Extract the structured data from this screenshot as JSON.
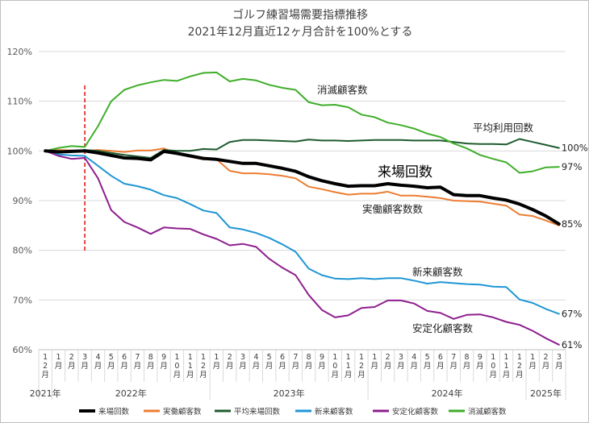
{
  "chart_data": {
    "type": "line",
    "title_line1": "ゴルフ練習場需要指標推移",
    "title_line2": "2021年12月直近12ヶ月合計を100%とする",
    "y_ticks": [
      "60%",
      "70%",
      "80%",
      "90%",
      "100%",
      "110%",
      "120%"
    ],
    "ylim": [
      60,
      120
    ],
    "grid": true,
    "legend_position": "bottom",
    "x_month_labels": [
      "12月",
      "1月",
      "2月",
      "3月",
      "4月",
      "5月",
      "6月",
      "7月",
      "8月",
      "9月",
      "10月",
      "11月",
      "12月",
      "1月",
      "2月",
      "3月",
      "4月",
      "5月",
      "6月",
      "7月",
      "8月",
      "9月",
      "10月",
      "11月",
      "12月",
      "1月",
      "2月",
      "3月",
      "4月",
      "5月",
      "6月",
      "7月",
      "8月",
      "9月",
      "10月",
      "11月",
      "12月",
      "1月",
      "2月",
      "3月"
    ],
    "x_year_groups": [
      {
        "label": "2021年",
        "start": 0,
        "end": 0
      },
      {
        "label": "2022年",
        "start": 1,
        "end": 12
      },
      {
        "label": "2023年",
        "start": 13,
        "end": 24
      },
      {
        "label": "2024年",
        "start": 25,
        "end": 36
      },
      {
        "label": "2025年",
        "start": 37,
        "end": 39
      }
    ],
    "marker_index": 3,
    "marker_color": "#e0201b",
    "series": [
      {
        "name": "来場回数",
        "color": "#000000",
        "width": 4,
        "values": [
          100,
          99.8,
          99.9,
          100,
          99.6,
          99.1,
          98.6,
          98.5,
          98.2,
          99.9,
          99.5,
          99,
          98.5,
          98.3,
          97.9,
          97.5,
          97.5,
          97,
          96.5,
          95.9,
          94.8,
          94,
          93.4,
          92.9,
          93,
          93,
          93.4,
          93.1,
          92.9,
          92.6,
          92.7,
          91.2,
          91,
          91,
          90.5,
          90.1,
          89.3,
          88.2,
          86.9,
          85.3
        ],
        "annotation": "来場回数",
        "end_label": "85%"
      },
      {
        "name": "実働顧客数",
        "color": "#ed7d31",
        "width": 2,
        "values": [
          100,
          100.2,
          100.1,
          100,
          100.2,
          100,
          99.8,
          100.1,
          100.1,
          100.5,
          99.5,
          98.8,
          98.3,
          98.3,
          96,
          95.5,
          95.5,
          95.3,
          95,
          94.5,
          92.8,
          92.3,
          91.7,
          91.2,
          91.4,
          91.4,
          91.8,
          91,
          91,
          90.8,
          90.5,
          90,
          89.9,
          89.8,
          89.4,
          89,
          87.2,
          86.9,
          86,
          85
        ],
        "annotation": "実働顧客数数",
        "end_label": ""
      },
      {
        "name": "平均来場回数",
        "color": "#1e5c2f",
        "width": 2,
        "values": [
          100,
          100,
          99.8,
          100.2,
          100,
          99.6,
          99.2,
          98.9,
          98.6,
          100.2,
          100,
          100,
          100.4,
          100.3,
          101.8,
          102.2,
          102.2,
          102.1,
          102,
          101.9,
          102.3,
          102.1,
          102.1,
          102,
          102.1,
          102.2,
          102.2,
          102.2,
          102.1,
          102.1,
          102.1,
          101.8,
          101.5,
          101.4,
          101.4,
          101.3,
          102.4,
          101.8,
          101.2,
          100.6
        ],
        "annotation": "平均利用回数",
        "end_label": "100%"
      },
      {
        "name": "新来顧客数",
        "color": "#1f96d4",
        "width": 2,
        "values": [
          100,
          99.3,
          99.1,
          99,
          97,
          95,
          93.4,
          92.9,
          92.2,
          91.1,
          90.5,
          89.3,
          88,
          87.5,
          84.6,
          84.2,
          83.5,
          82.5,
          81.2,
          79.7,
          76.3,
          75,
          74.3,
          74.2,
          74.4,
          74.2,
          74.4,
          74.4,
          73.9,
          73.3,
          73.6,
          73.4,
          73.2,
          73.1,
          72.7,
          72.6,
          70.1,
          69.4,
          68.2,
          67.2
        ],
        "annotation": "新来顧客数",
        "end_label": "67%"
      },
      {
        "name": "安定化顧客数",
        "color": "#8e1f8f",
        "width": 2,
        "values": [
          100,
          99,
          98.4,
          98.6,
          94.5,
          88.1,
          85.7,
          84.6,
          83.3,
          84.6,
          84.4,
          84.3,
          83.2,
          82.3,
          81,
          81.3,
          80.7,
          78.3,
          76.5,
          75,
          71,
          68,
          66.5,
          66.9,
          68.4,
          68.6,
          69.9,
          69.9,
          69.3,
          67.8,
          67.4,
          66.2,
          67,
          67.1,
          66.5,
          65.6,
          65,
          63.8,
          62.3,
          61
        ],
        "annotation": "安定化顧客数",
        "end_label": "61%"
      },
      {
        "name": "消滅顧客数",
        "color": "#3fae2a",
        "width": 2,
        "values": [
          100,
          100.6,
          101,
          100.8,
          105,
          110,
          112.3,
          113.2,
          113.8,
          114.3,
          114.1,
          115,
          115.7,
          115.8,
          114,
          114.5,
          114.2,
          113.3,
          112.7,
          112.3,
          109.8,
          109.2,
          109.3,
          108.8,
          107.3,
          106.8,
          105.7,
          105.2,
          104.5,
          103.5,
          102.8,
          101.5,
          100.5,
          99.2,
          98.4,
          97.7,
          95.6,
          95.9,
          96.7,
          96.8
        ],
        "annotation": "消滅顧客数",
        "end_label": "97%"
      }
    ]
  }
}
